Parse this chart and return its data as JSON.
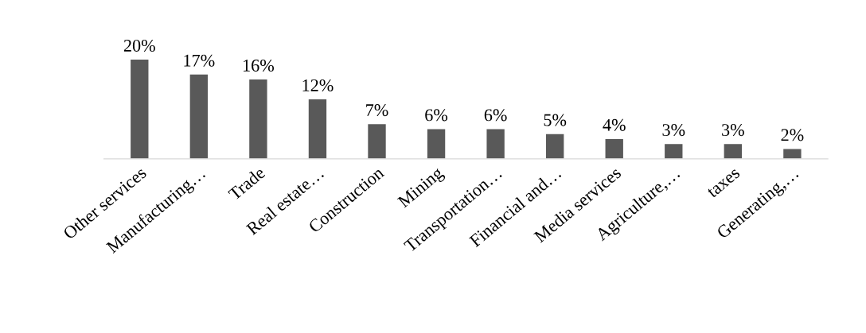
{
  "chart_data": {
    "type": "bar",
    "categories": [
      "Other services",
      "Manufacturing…",
      "Trade",
      "Real estate…",
      "Construction",
      "Mining",
      "Transportation…",
      "Financial and…",
      "Media services",
      "Agriculture,…",
      "taxes",
      "Generating,…"
    ],
    "values": [
      20,
      17,
      16,
      12,
      7,
      6,
      6,
      5,
      4,
      3,
      3,
      2
    ],
    "value_labels": [
      "20%",
      "17%",
      "16%",
      "12%",
      "7%",
      "6%",
      "6%",
      "5%",
      "4%",
      "3%",
      "3%",
      "2%"
    ],
    "color": "#595959",
    "grid": false,
    "legend": false
  }
}
